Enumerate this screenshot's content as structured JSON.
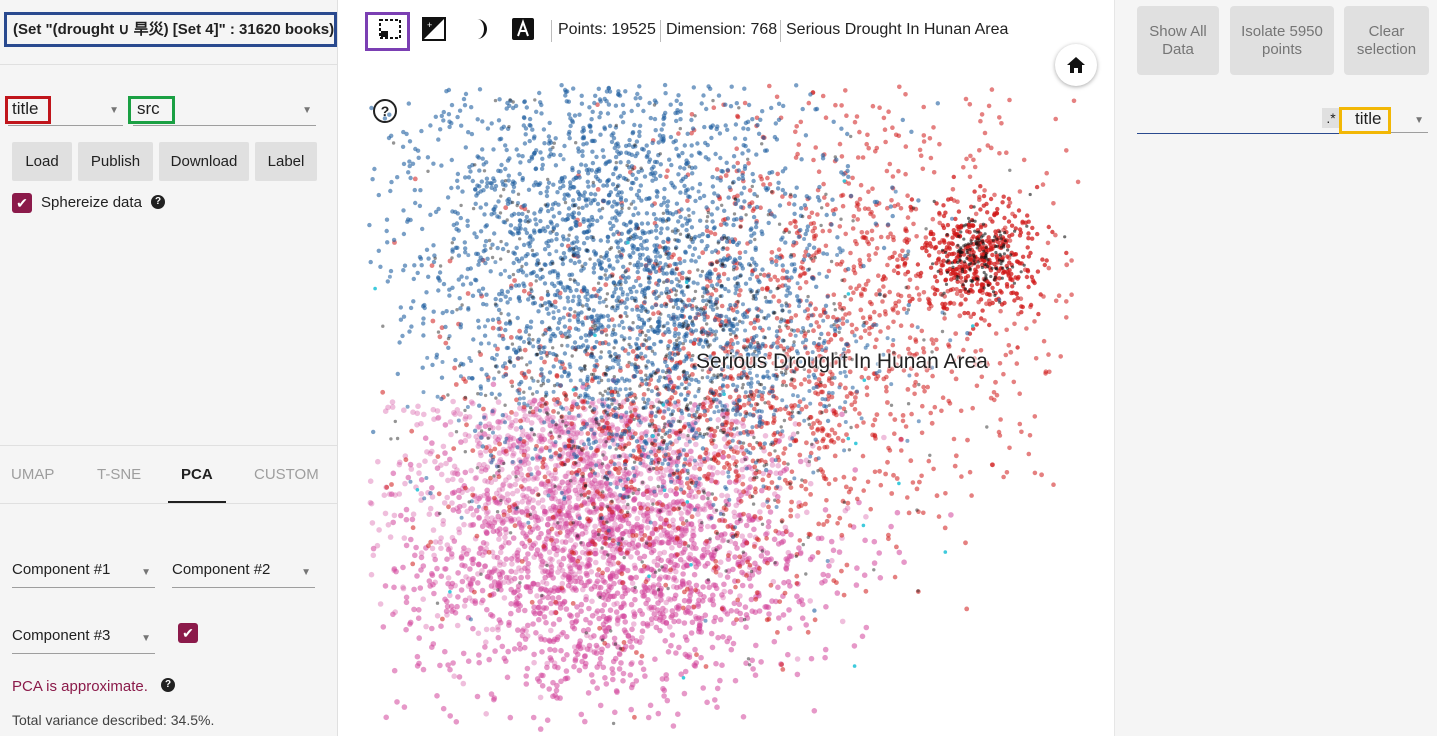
{
  "left": {
    "dataset_title": "(Set \"(drought ∪ 旱災) [Set 4]\" : 31620 books)",
    "label_by": "title",
    "color_by": "src",
    "buttons": {
      "load": "Load",
      "publish": "Publish",
      "download": "Download",
      "label": "Label"
    },
    "sphereize_label": "Sphereize data",
    "tabs": {
      "umap": "UMAP",
      "tsne": "T-SNE",
      "pca": "PCA",
      "custom": "CUSTOM"
    },
    "components": {
      "c1": "Component #1",
      "c2": "Component #2",
      "c3": "Component #3"
    },
    "pca_note": "PCA is approximate.",
    "variance": "Total variance described: 34.5%."
  },
  "toolbar": {
    "points": "Points: 19525",
    "dimension": "Dimension: 768",
    "selected": "Serious Drought In Hunan Area"
  },
  "plot": {
    "label": "Serious Drought In Hunan Area",
    "colors": {
      "blue": "#1f5fa0",
      "red": "#d01818",
      "magenta": "#d2449a",
      "dark": "#111111",
      "cyan": "#29c4d8"
    }
  },
  "right": {
    "show_all": "Show All Data",
    "isolate": "Isolate 5950 points",
    "clear": "Clear selection",
    "regex": ".*",
    "search_by": "title"
  },
  "icons": {
    "select": "selection-box-icon",
    "night": "night-mode-icon",
    "labels3d": "text-label-icon",
    "contrast": "contrast-icon",
    "home": "home-icon"
  }
}
